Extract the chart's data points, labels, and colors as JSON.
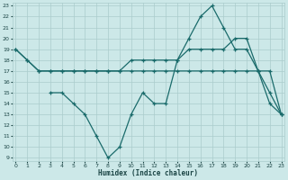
{
  "xlabel": "Humidex (Indice chaleur)",
  "bg_color": "#cce8e8",
  "line_color": "#1a6b6b",
  "grid_color": "#aacccc",
  "xmin": 0,
  "xmax": 23,
  "ymin": 9,
  "ymax": 23,
  "line1_x": [
    0,
    1,
    2,
    3,
    4,
    5,
    6,
    7,
    8,
    9,
    10,
    11,
    12,
    13,
    14,
    15,
    16,
    17,
    18,
    19,
    20,
    21,
    22,
    23
  ],
  "line1_y": [
    19,
    18,
    17,
    17,
    17,
    17,
    17,
    17,
    17,
    17,
    17,
    17,
    17,
    17,
    17,
    17,
    17,
    17,
    17,
    17,
    17,
    17,
    17,
    13
  ],
  "line2_x": [
    0,
    1,
    2,
    3,
    4,
    5,
    6,
    7,
    8,
    9,
    10,
    11,
    12,
    13,
    14,
    15,
    16,
    17,
    18,
    19,
    20,
    21,
    22,
    23
  ],
  "line2_y": [
    19,
    18,
    17,
    17,
    17,
    17,
    17,
    17,
    17,
    17,
    18,
    18,
    18,
    18,
    18,
    19,
    19,
    19,
    19,
    20,
    20,
    17,
    14,
    13
  ],
  "line3_x": [
    3,
    4,
    5,
    6,
    7,
    8,
    9,
    10,
    11,
    12,
    13,
    14,
    15,
    16,
    17,
    18,
    19,
    20,
    21,
    22,
    23
  ],
  "line3_y": [
    15,
    15,
    14,
    13,
    11,
    9,
    10,
    13,
    15,
    14,
    14,
    18,
    20,
    22,
    23,
    21,
    19,
    19,
    17,
    15,
    13
  ]
}
